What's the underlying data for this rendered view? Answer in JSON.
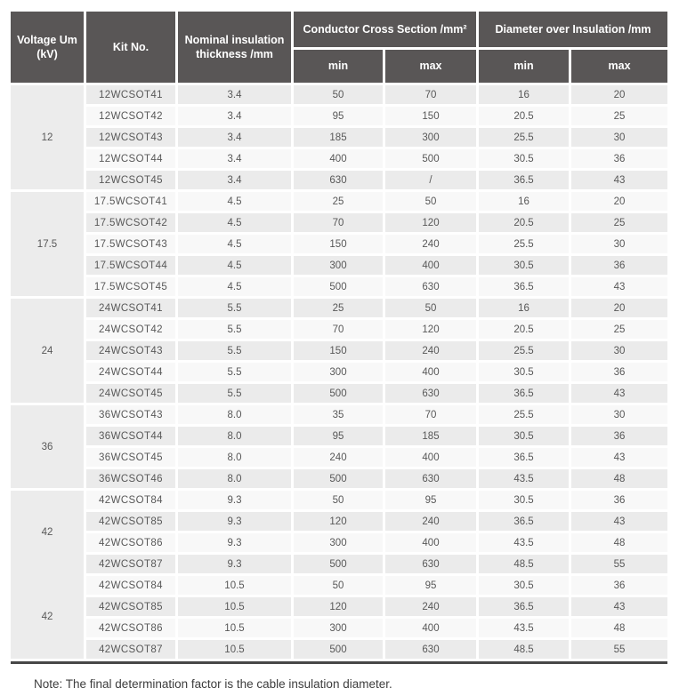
{
  "table": {
    "header": {
      "voltage": "Voltage Um (kV)",
      "kit": "Kit No.",
      "nominal": "Nominal insulation thickness /mm",
      "ccs": "Conductor Cross Section /mm²",
      "doi": "Diameter over Insulation /mm",
      "min": "min",
      "max": "max"
    },
    "groups": [
      {
        "voltage": "12",
        "rows": [
          {
            "kit": "12WCSOT41",
            "thickness": "3.4",
            "ccs_min": "50",
            "ccs_max": "70",
            "doi_min": "16",
            "doi_max": "20"
          },
          {
            "kit": "12WCSOT42",
            "thickness": "3.4",
            "ccs_min": "95",
            "ccs_max": "150",
            "doi_min": "20.5",
            "doi_max": "25"
          },
          {
            "kit": "12WCSOT43",
            "thickness": "3.4",
            "ccs_min": "185",
            "ccs_max": "300",
            "doi_min": "25.5",
            "doi_max": "30"
          },
          {
            "kit": "12WCSOT44",
            "thickness": "3.4",
            "ccs_min": "400",
            "ccs_max": "500",
            "doi_min": "30.5",
            "doi_max": "36"
          },
          {
            "kit": "12WCSOT45",
            "thickness": "3.4",
            "ccs_min": "630",
            "ccs_max": "/",
            "doi_min": "36.5",
            "doi_max": "43"
          }
        ]
      },
      {
        "voltage": "17.5",
        "rows": [
          {
            "kit": "17.5WCSOT41",
            "thickness": "4.5",
            "ccs_min": "25",
            "ccs_max": "50",
            "doi_min": "16",
            "doi_max": "20"
          },
          {
            "kit": "17.5WCSOT42",
            "thickness": "4.5",
            "ccs_min": "70",
            "ccs_max": "120",
            "doi_min": "20.5",
            "doi_max": "25"
          },
          {
            "kit": "17.5WCSOT43",
            "thickness": "4.5",
            "ccs_min": "150",
            "ccs_max": "240",
            "doi_min": "25.5",
            "doi_max": "30"
          },
          {
            "kit": "17.5WCSOT44",
            "thickness": "4.5",
            "ccs_min": "300",
            "ccs_max": "400",
            "doi_min": "30.5",
            "doi_max": "36"
          },
          {
            "kit": "17.5WCSOT45",
            "thickness": "4.5",
            "ccs_min": "500",
            "ccs_max": "630",
            "doi_min": "36.5",
            "doi_max": "43"
          }
        ]
      },
      {
        "voltage": "24",
        "rows": [
          {
            "kit": "24WCSOT41",
            "thickness": "5.5",
            "ccs_min": "25",
            "ccs_max": "50",
            "doi_min": "16",
            "doi_max": "20"
          },
          {
            "kit": "24WCSOT42",
            "thickness": "5.5",
            "ccs_min": "70",
            "ccs_max": "120",
            "doi_min": "20.5",
            "doi_max": "25"
          },
          {
            "kit": "24WCSOT43",
            "thickness": "5.5",
            "ccs_min": "150",
            "ccs_max": "240",
            "doi_min": "25.5",
            "doi_max": "30"
          },
          {
            "kit": "24WCSOT44",
            "thickness": "5.5",
            "ccs_min": "300",
            "ccs_max": "400",
            "doi_min": "30.5",
            "doi_max": "36"
          },
          {
            "kit": "24WCSOT45",
            "thickness": "5.5",
            "ccs_min": "500",
            "ccs_max": "630",
            "doi_min": "36.5",
            "doi_max": "43"
          }
        ]
      },
      {
        "voltage": "36",
        "rows": [
          {
            "kit": "36WCSOT43",
            "thickness": "8.0",
            "ccs_min": "35",
            "ccs_max": "70",
            "doi_min": "25.5",
            "doi_max": "30"
          },
          {
            "kit": "36WCSOT44",
            "thickness": "8.0",
            "ccs_min": "95",
            "ccs_max": "185",
            "doi_min": "30.5",
            "doi_max": "36"
          },
          {
            "kit": "36WCSOT45",
            "thickness": "8.0",
            "ccs_min": "240",
            "ccs_max": "400",
            "doi_min": "36.5",
            "doi_max": "43"
          },
          {
            "kit": "36WCSOT46",
            "thickness": "8.0",
            "ccs_min": "500",
            "ccs_max": "630",
            "doi_min": "43.5",
            "doi_max": "48"
          }
        ]
      },
      {
        "voltage": "42",
        "voltage_spans_next": true,
        "rows": [
          {
            "kit": "42WCSOT84",
            "thickness": "9.3",
            "ccs_min": "50",
            "ccs_max": "95",
            "doi_min": "30.5",
            "doi_max": "36"
          },
          {
            "kit": "42WCSOT85",
            "thickness": "9.3",
            "ccs_min": "120",
            "ccs_max": "240",
            "doi_min": "36.5",
            "doi_max": "43"
          },
          {
            "kit": "42WCSOT86",
            "thickness": "9.3",
            "ccs_min": "300",
            "ccs_max": "400",
            "doi_min": "43.5",
            "doi_max": "48"
          },
          {
            "kit": "42WCSOT87",
            "thickness": "9.3",
            "ccs_min": "500",
            "ccs_max": "630",
            "doi_min": "48.5",
            "doi_max": "55"
          }
        ]
      },
      {
        "voltage": "42",
        "voltage_skip": true,
        "rows": [
          {
            "kit": "42WCSOT84",
            "thickness": "10.5",
            "ccs_min": "50",
            "ccs_max": "95",
            "doi_min": "30.5",
            "doi_max": "36"
          },
          {
            "kit": "42WCSOT85",
            "thickness": "10.5",
            "ccs_min": "120",
            "ccs_max": "240",
            "doi_min": "36.5",
            "doi_max": "43"
          },
          {
            "kit": "42WCSOT86",
            "thickness": "10.5",
            "ccs_min": "300",
            "ccs_max": "400",
            "doi_min": "43.5",
            "doi_max": "48"
          },
          {
            "kit": "42WCSOT87",
            "thickness": "10.5",
            "ccs_min": "500",
            "ccs_max": "630",
            "doi_min": "48.5",
            "doi_max": "55"
          }
        ]
      }
    ],
    "note": "Note: The final determination factor is the cable insulation diameter."
  },
  "colors": {
    "header_bg": "#595656",
    "header_text": "#ffffff",
    "row_dark": "#ebebeb",
    "row_light": "#f8f8f8",
    "voltage_cell_bg": "#ececec",
    "gap": "#ffffff",
    "bottom_bar": "#474747",
    "body_text": "#585858",
    "note_text": "#3d3d3d"
  }
}
